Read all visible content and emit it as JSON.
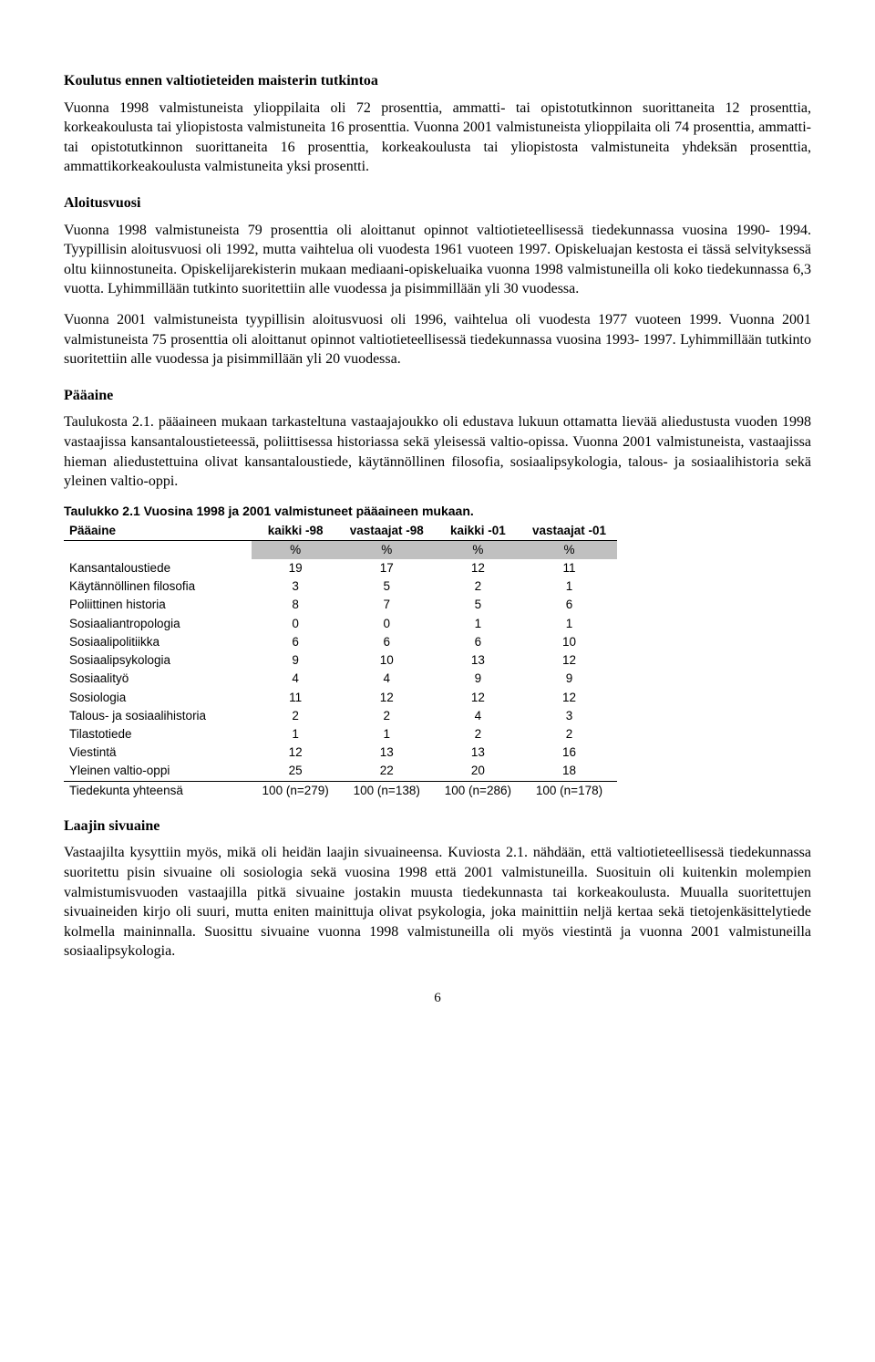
{
  "h1": "Koulutus ennen valtiotieteiden maisterin tutkintoa",
  "p1": "Vuonna 1998 valmistuneista ylioppilaita oli 72 prosenttia, ammatti- tai opistotutkinnon suorittaneita 12 prosenttia, korkeakoulusta tai yliopistosta valmistuneita 16 prosenttia. Vuonna 2001 valmistuneista ylioppilaita oli 74 prosenttia, ammatti- tai opistotutkinnon suorittaneita 16 prosenttia, korkeakoulusta tai yliopistosta valmistuneita yhdeksän prosenttia, ammattikorkeakoulusta valmistuneita yksi prosentti.",
  "h2": "Aloitusvuosi",
  "p2": "Vuonna 1998 valmistuneista 79 prosenttia oli aloittanut opinnot valtiotieteellisessä tiedekunnassa vuosina 1990- 1994. Tyypillisin aloitusvuosi oli 1992, mutta vaihtelua oli vuodesta 1961 vuoteen 1997. Opiskeluajan kestosta ei tässä selvityksessä oltu kiinnostuneita. Opiskelijarekisterin mukaan mediaani-opiskeluaika vuonna 1998 valmistuneilla oli koko tiedekunnassa 6,3 vuotta. Lyhimmillään tutkinto suoritettiin alle vuodessa ja pisimmillään yli 30 vuodessa.",
  "p3": "Vuonna 2001 valmistuneista tyypillisin aloitusvuosi oli 1996, vaihtelua oli vuodesta 1977 vuoteen 1999. Vuonna 2001 valmistuneista 75 prosenttia oli aloittanut opinnot valtiotieteellisessä tiedekunnassa vuosina 1993- 1997. Lyhimmillään tutkinto suoritettiin alle vuodessa ja pisimmillään yli 20 vuodessa.",
  "h3": "Pääaine",
  "p4": "Taulukosta 2.1. pääaineen mukaan tarkasteltuna vastaajajoukko oli edustava lukuun ottamatta lievää aliedustusta vuoden 1998 vastaajissa kansantaloustieteessä, poliittisessa historiassa sekä yleisessä valtio-opissa. Vuonna 2001 valmistuneista, vastaajissa hieman aliedustettuina olivat kansantaloustiede, käytännöllinen filosofia, sosiaalipsykologia, talous- ja sosiaalihistoria sekä yleinen valtio-oppi.",
  "table": {
    "title": "Taulukko 2.1 Vuosina 1998 ja 2001 valmistuneet pääaineen mukaan.",
    "columns": [
      "Pääaine",
      "kaikki -98",
      "vastaajat -98",
      "kaikki -01",
      "vastaajat -01"
    ],
    "unit_row": [
      "",
      "%",
      "%",
      "%",
      "%"
    ],
    "rows": [
      [
        "Kansantaloustiede",
        "19",
        "17",
        "12",
        "11"
      ],
      [
        "Käytännöllinen filosofia",
        "3",
        "5",
        "2",
        "1"
      ],
      [
        "Poliittinen historia",
        "8",
        "7",
        "5",
        "6"
      ],
      [
        "Sosiaaliantropologia",
        "0",
        "0",
        "1",
        "1"
      ],
      [
        "Sosiaalipolitiikka",
        "6",
        "6",
        "6",
        "10"
      ],
      [
        "Sosiaalipsykologia",
        "9",
        "10",
        "13",
        "12"
      ],
      [
        "Sosiaalityö",
        "4",
        "4",
        "9",
        "9"
      ],
      [
        "Sosiologia",
        "11",
        "12",
        "12",
        "12"
      ],
      [
        "Talous- ja sosiaalihistoria",
        "2",
        "2",
        "4",
        "3"
      ],
      [
        "Tilastotiede",
        "1",
        "1",
        "2",
        "2"
      ],
      [
        "Viestintä",
        "12",
        "13",
        "13",
        "16"
      ],
      [
        "Yleinen valtio-oppi",
        "25",
        "22",
        "20",
        "18"
      ]
    ],
    "total_row": [
      "Tiedekunta yhteensä",
      "100 (n=279)",
      "100 (n=138)",
      "100 (n=286)",
      "100 (n=178)"
    ]
  },
  "h4": "Laajin sivuaine",
  "p5": "Vastaajilta kysyttiin myös, mikä oli heidän laajin sivuaineensa. Kuviosta 2.1. nähdään, että valtiotieteellisessä tiedekunnassa suoritettu pisin sivuaine oli sosiologia sekä vuosina 1998 että 2001 valmistuneilla. Suosituin oli kuitenkin molempien valmistumisvuoden vastaajilla pitkä sivuaine jostakin muusta tiedekunnasta tai korkeakoulusta. Muualla suoritettujen sivuaineiden kirjo oli suuri, mutta eniten mainittuja olivat psykologia, joka mainittiin neljä kertaa sekä tietojenkäsittelytiede kolmella maininnalla. Suosittu sivuaine vuonna 1998 valmistuneilla oli myös viestintä ja vuonna 2001 valmistuneilla sosiaalipsykologia.",
  "page_number": "6"
}
